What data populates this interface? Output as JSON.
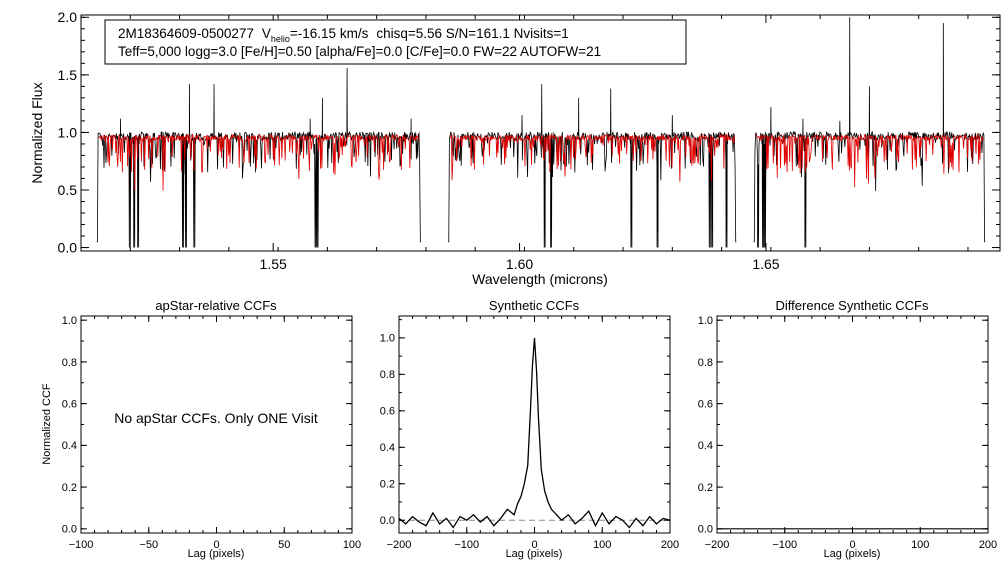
{
  "chart_data": [
    {
      "type": "line",
      "panel": "spectrum",
      "info_line1": {
        "star": "2M18364609-0500277",
        "v_symbol": "V",
        "v_sub": "helio",
        "v_value": "=-16.15 km/s",
        "rest": "chisq=5.56  S/N=161.1  Nvisits=1"
      },
      "info_line2": "Teff=5,000 logg=3.0 [Fe/H]=0.50 [alpha/Fe]=0.0 [C/Fe]=0.0 FW=22 AUTOFW=21",
      "xlabel": "Wavelength (microns)",
      "ylabel": "Normalized Flux",
      "xlim": [
        1.511,
        1.6975
      ],
      "ylim": [
        -0.03,
        2.02
      ],
      "xticks": [
        "1.55",
        "1.60",
        "1.65"
      ],
      "xtick_values": [
        1.55,
        1.6,
        1.65
      ],
      "yticks": [
        "0.0",
        "0.5",
        "1.0",
        "1.5",
        "2.0"
      ],
      "ytick_values": [
        0.0,
        0.5,
        1.0,
        1.5,
        2.0
      ],
      "detector_ranges": [
        [
          1.5142,
          1.58
        ],
        [
          1.5855,
          1.644
        ],
        [
          1.6475,
          1.6945
        ]
      ],
      "series": [
        {
          "color": "#000000",
          "continuum": 0.97
        },
        {
          "color": "#e00000",
          "continuum": 0.955
        }
      ],
      "emission_spikes": [
        {
          "x": 1.533,
          "y": 1.42
        },
        {
          "x": 1.538,
          "y": 1.42
        },
        {
          "x": 1.56,
          "y": 1.3
        },
        {
          "x": 1.565,
          "y": 1.56
        },
        {
          "x": 1.6045,
          "y": 1.42
        },
        {
          "x": 1.612,
          "y": 1.3
        },
        {
          "x": 1.6185,
          "y": 1.38
        },
        {
          "x": 1.667,
          "y": 2.0
        },
        {
          "x": 1.671,
          "y": 1.4
        },
        {
          "x": 1.686,
          "y": 1.95
        },
        {
          "x": 1.519,
          "y": 1.12
        },
        {
          "x": 1.5575,
          "y": 1.12
        },
        {
          "x": 1.578,
          "y": 1.12
        },
        {
          "x": 1.6005,
          "y": 1.15
        },
        {
          "x": 1.631,
          "y": 1.15
        },
        {
          "x": 1.651,
          "y": 1.22
        },
        {
          "x": 1.6575,
          "y": 1.12
        },
        {
          "x": 1.665,
          "y": 1.1
        }
      ],
      "bad_pixel_drops": [
        1.5209,
        1.5218,
        1.5226,
        1.5317,
        1.5323,
        1.534,
        1.5586,
        1.559,
        1.6051,
        1.6064,
        1.6227,
        1.628,
        1.6386,
        1.6391,
        1.642,
        1.6484,
        1.6494,
        1.6498,
        1.658
      ]
    },
    {
      "type": "line",
      "panel": "apstar-ccf",
      "title": "apStar-relative CCFs",
      "xlabel": "Lag (pixels)",
      "ylabel": "Normalized CCF",
      "xlim": [
        -100,
        100
      ],
      "ylim": [
        -0.02,
        1.02
      ],
      "xticks": [
        "-100",
        "-50",
        "0",
        "50",
        "100"
      ],
      "xtick_values": [
        -100,
        -50,
        0,
        50,
        100
      ],
      "yticks": [
        "0.0",
        "0.2",
        "0.4",
        "0.6",
        "0.8",
        "1.0"
      ],
      "ytick_values": [
        0.0,
        0.2,
        0.4,
        0.6,
        0.8,
        1.0
      ],
      "message": "No apStar CCFs.  Only ONE Visit",
      "series": []
    },
    {
      "type": "line",
      "panel": "synthetic-ccf",
      "title": "Synthetic CCFs",
      "xlabel": "Lag (pixels)",
      "xlim": [
        -200,
        200
      ],
      "ylim": [
        -0.07,
        1.12
      ],
      "xticks": [
        "-200",
        "-100",
        "0",
        "100",
        "200"
      ],
      "xtick_values": [
        -200,
        -100,
        0,
        100,
        200
      ],
      "yticks": [
        "0.0",
        "0.2",
        "0.4",
        "0.6",
        "0.8",
        "1.0"
      ],
      "ytick_values": [
        0.0,
        0.2,
        0.4,
        0.6,
        0.8,
        1.0
      ],
      "baseline": 0.0,
      "series": [
        {
          "color": "#000000",
          "x": [
            -200,
            -190,
            -180,
            -170,
            -160,
            -150,
            -140,
            -130,
            -120,
            -110,
            -100,
            -90,
            -80,
            -70,
            -60,
            -50,
            -40,
            -30,
            -25,
            -20,
            -15,
            -10,
            -6,
            -3,
            0,
            3,
            6,
            10,
            15,
            20,
            25,
            30,
            40,
            50,
            60,
            70,
            80,
            90,
            100,
            110,
            120,
            130,
            140,
            150,
            160,
            170,
            180,
            190,
            200
          ],
          "y": [
            0.01,
            -0.02,
            0.02,
            -0.01,
            -0.03,
            0.04,
            -0.02,
            0.01,
            -0.04,
            0.02,
            0.0,
            0.03,
            -0.01,
            0.02,
            -0.03,
            0.01,
            0.06,
            0.03,
            0.09,
            0.13,
            0.2,
            0.3,
            0.6,
            0.85,
            1.0,
            0.82,
            0.55,
            0.28,
            0.16,
            0.1,
            0.06,
            0.04,
            0.0,
            0.03,
            -0.02,
            0.01,
            0.05,
            -0.03,
            0.04,
            -0.02,
            0.02,
            0.0,
            -0.04,
            0.01,
            -0.03,
            0.02,
            -0.02,
            0.01,
            0.0
          ]
        }
      ]
    },
    {
      "type": "line",
      "panel": "difference-ccf",
      "title": "Difference Synthetic CCFs",
      "xlabel": "Lag (pixels)",
      "xlim": [
        -200,
        200
      ],
      "ylim": [
        -0.02,
        1.02
      ],
      "xticks": [
        "-200",
        "-100",
        "0",
        "100",
        "200"
      ],
      "xtick_values": [
        -200,
        -100,
        0,
        100,
        200
      ],
      "yticks": [
        "0.0",
        "0.2",
        "0.4",
        "0.6",
        "0.8",
        "1.0"
      ],
      "ytick_values": [
        0.0,
        0.2,
        0.4,
        0.6,
        0.8,
        1.0
      ],
      "series": [
        {
          "color": "#000000",
          "x": [
            -200,
            200
          ],
          "y": [
            0.0,
            0.0
          ]
        }
      ]
    }
  ]
}
